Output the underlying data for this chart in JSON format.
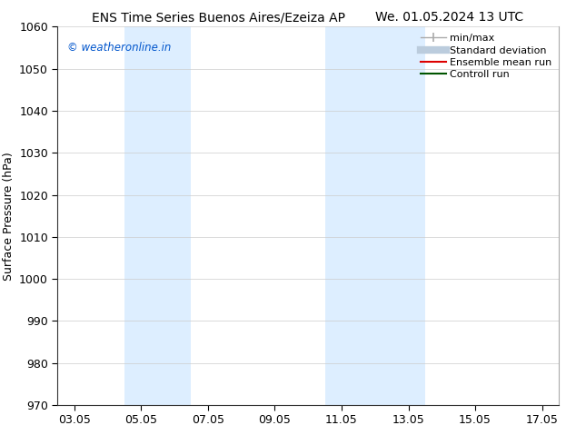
{
  "title_left": "ENS Time Series Buenos Aires/Ezeiza AP",
  "title_right": "We. 01.05.2024 13 UTC",
  "ylabel": "Surface Pressure (hPa)",
  "ylim": [
    970,
    1060
  ],
  "yticks": [
    970,
    980,
    990,
    1000,
    1010,
    1020,
    1030,
    1040,
    1050,
    1060
  ],
  "xtick_labels": [
    "03.05",
    "05.05",
    "07.05",
    "09.05",
    "11.05",
    "13.05",
    "15.05",
    "17.05"
  ],
  "x_positions": [
    0,
    2,
    4,
    6,
    8,
    10,
    12,
    14
  ],
  "xlim": [
    -0.5,
    14.5
  ],
  "watermark": "© weatheronline.in",
  "watermark_color": "#0055cc",
  "bg_color": "#ffffff",
  "plot_bg_color": "#ffffff",
  "shaded_bands": [
    {
      "x_start": 1.5,
      "x_end": 3.5,
      "color": "#ddeeff"
    },
    {
      "x_start": 7.5,
      "x_end": 10.5,
      "color": "#ddeeff"
    }
  ],
  "legend_entries": [
    {
      "label": "min/max",
      "color": "#aaaaaa",
      "linestyle": "-",
      "linewidth": 1.0,
      "is_minmax": true
    },
    {
      "label": "Standard deviation",
      "color": "#bbccdd",
      "linestyle": "-",
      "linewidth": 6,
      "is_minmax": false
    },
    {
      "label": "Ensemble mean run",
      "color": "#dd0000",
      "linestyle": "-",
      "linewidth": 1.5,
      "is_minmax": false
    },
    {
      "label": "Controll run",
      "color": "#005500",
      "linestyle": "-",
      "linewidth": 1.5,
      "is_minmax": false
    }
  ],
  "grid_color": "#cccccc",
  "grid_linewidth": 0.5,
  "title_fontsize": 10,
  "tick_fontsize": 9,
  "legend_fontsize": 8,
  "ylabel_fontsize": 9
}
